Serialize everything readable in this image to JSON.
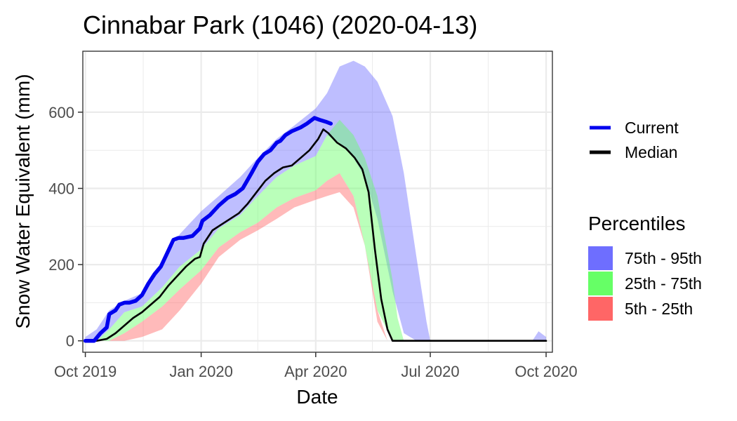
{
  "chart_data": {
    "type": "area",
    "title": "Cinnabar Park (1046) (2020-04-13)",
    "xlabel": "Date",
    "ylabel": "Snow Water Equivalent (mm)",
    "xlim": [
      "2019-09-29",
      "2020-10-06"
    ],
    "ylim": [
      -30,
      760
    ],
    "x_ticks": [
      {
        "date": "2019-10-01",
        "label": "Oct 2019"
      },
      {
        "date": "2020-01-01",
        "label": "Jan 2020"
      },
      {
        "date": "2020-04-01",
        "label": "Apr 2020"
      },
      {
        "date": "2020-07-01",
        "label": "Jul 2020"
      },
      {
        "date": "2020-10-01",
        "label": "Oct 2020"
      }
    ],
    "y_ticks": [
      {
        "value": 0,
        "label": "0"
      },
      {
        "value": 200,
        "label": "200"
      },
      {
        "value": 400,
        "label": "400"
      },
      {
        "value": 600,
        "label": "600"
      }
    ],
    "grid": true,
    "legend_placement": "right",
    "series": [
      {
        "name": "Current",
        "color": "#0000ee",
        "x": [
          "2019-10-01",
          "2019-10-08",
          "2019-10-13",
          "2019-10-18",
          "2019-10-20",
          "2019-10-25",
          "2019-10-28",
          "2019-11-01",
          "2019-11-05",
          "2019-11-10",
          "2019-11-15",
          "2019-11-20",
          "2019-11-25",
          "2019-11-30",
          "2019-12-05",
          "2019-12-10",
          "2019-12-14",
          "2019-12-18",
          "2019-12-25",
          "2019-12-31",
          "2020-01-02",
          "2020-01-08",
          "2020-01-15",
          "2020-01-22",
          "2020-01-28",
          "2020-02-03",
          "2020-02-10",
          "2020-02-15",
          "2020-02-20",
          "2020-02-25",
          "2020-03-01",
          "2020-03-04",
          "2020-03-08",
          "2020-03-13",
          "2020-03-20",
          "2020-03-25",
          "2020-03-31",
          "2020-04-04",
          "2020-04-09",
          "2020-04-13"
        ],
        "y": [
          0,
          0,
          20,
          35,
          70,
          80,
          95,
          100,
          100,
          105,
          120,
          150,
          175,
          195,
          230,
          265,
          270,
          270,
          275,
          295,
          315,
          330,
          355,
          375,
          385,
          400,
          440,
          470,
          490,
          500,
          520,
          525,
          540,
          550,
          560,
          570,
          585,
          580,
          575,
          570
        ]
      },
      {
        "name": "Median",
        "color": "#000000",
        "x": [
          "2019-10-01",
          "2019-10-10",
          "2019-10-18",
          "2019-10-25",
          "2019-11-01",
          "2019-11-08",
          "2019-11-15",
          "2019-11-22",
          "2019-11-29",
          "2019-12-06",
          "2019-12-13",
          "2019-12-20",
          "2019-12-27",
          "2019-12-31",
          "2020-01-03",
          "2020-01-10",
          "2020-01-17",
          "2020-01-24",
          "2020-01-31",
          "2020-02-07",
          "2020-02-14",
          "2020-02-21",
          "2020-02-28",
          "2020-03-06",
          "2020-03-13",
          "2020-03-20",
          "2020-03-27",
          "2020-04-03",
          "2020-04-07",
          "2020-04-11",
          "2020-04-18",
          "2020-04-25",
          "2020-05-02",
          "2020-05-08",
          "2020-05-13",
          "2020-05-18",
          "2020-05-23",
          "2020-05-28",
          "2020-06-01",
          "2020-06-06",
          "2020-06-15",
          "2020-07-15",
          "2020-08-15",
          "2020-09-15",
          "2020-10-01"
        ],
        "y": [
          0,
          0,
          5,
          20,
          40,
          60,
          75,
          95,
          115,
          145,
          170,
          195,
          215,
          220,
          255,
          290,
          305,
          320,
          335,
          360,
          390,
          420,
          440,
          455,
          460,
          480,
          500,
          530,
          555,
          545,
          520,
          505,
          480,
          450,
          390,
          240,
          110,
          30,
          0,
          0,
          0,
          0,
          0,
          0,
          0
        ]
      }
    ],
    "bands": [
      {
        "name": "75th - 95th",
        "color": "#6e6eff",
        "fill_opacity": 0.45,
        "x": [
          "2019-10-01",
          "2019-10-10",
          "2019-10-20",
          "2019-11-01",
          "2019-11-15",
          "2019-12-01",
          "2019-12-15",
          "2020-01-01",
          "2020-01-15",
          "2020-02-01",
          "2020-02-15",
          "2020-03-01",
          "2020-03-15",
          "2020-04-01",
          "2020-04-10",
          "2020-04-20",
          "2020-05-01",
          "2020-05-10",
          "2020-05-20",
          "2020-06-01",
          "2020-06-10",
          "2020-06-20",
          "2020-06-28",
          "2020-07-01",
          "2020-09-20",
          "2020-09-25",
          "2020-10-01"
        ],
        "upper": [
          10,
          30,
          80,
          105,
          125,
          200,
          280,
          340,
          380,
          430,
          480,
          530,
          565,
          610,
          650,
          720,
          735,
          720,
          680,
          590,
          440,
          220,
          50,
          0,
          0,
          25,
          10
        ],
        "lower": [
          0,
          0,
          30,
          75,
          90,
          140,
          195,
          240,
          295,
          330,
          380,
          430,
          460,
          485,
          540,
          520,
          480,
          430,
          320,
          130,
          20,
          0,
          0,
          0,
          0,
          0,
          0
        ]
      },
      {
        "name": "25th - 75th",
        "color": "#66ff66",
        "fill_opacity": 0.45,
        "x": [
          "2019-10-01",
          "2019-10-10",
          "2019-10-20",
          "2019-11-01",
          "2019-11-15",
          "2019-12-01",
          "2019-12-15",
          "2020-01-01",
          "2020-01-15",
          "2020-02-01",
          "2020-02-15",
          "2020-03-01",
          "2020-03-15",
          "2020-04-01",
          "2020-04-10",
          "2020-04-20",
          "2020-05-01",
          "2020-05-10",
          "2020-05-20",
          "2020-06-01",
          "2020-06-05",
          "2020-06-10"
        ],
        "upper": [
          0,
          0,
          30,
          75,
          90,
          140,
          195,
          240,
          295,
          330,
          380,
          430,
          460,
          485,
          540,
          580,
          540,
          480,
          380,
          160,
          60,
          0
        ],
        "lower": [
          0,
          0,
          0,
          20,
          50,
          90,
          135,
          185,
          245,
          285,
          310,
          350,
          375,
          395,
          420,
          440,
          380,
          250,
          80,
          0,
          0,
          0
        ]
      },
      {
        "name": "5th - 25th",
        "color": "#ff6666",
        "fill_opacity": 0.45,
        "x": [
          "2019-10-01",
          "2019-10-10",
          "2019-10-20",
          "2019-11-01",
          "2019-11-15",
          "2019-12-01",
          "2019-12-15",
          "2020-01-01",
          "2020-01-15",
          "2020-02-01",
          "2020-02-15",
          "2020-03-01",
          "2020-03-15",
          "2020-04-01",
          "2020-04-10",
          "2020-04-20",
          "2020-05-01",
          "2020-05-10",
          "2020-05-20",
          "2020-05-28",
          "2020-06-01"
        ],
        "upper": [
          0,
          0,
          0,
          20,
          50,
          90,
          135,
          185,
          245,
          285,
          310,
          350,
          375,
          395,
          420,
          440,
          380,
          250,
          80,
          0,
          0
        ],
        "lower": [
          0,
          0,
          0,
          0,
          10,
          30,
          80,
          150,
          220,
          265,
          290,
          320,
          350,
          370,
          380,
          390,
          350,
          250,
          50,
          0,
          0
        ]
      }
    ],
    "legend": {
      "lines": [
        {
          "label": "Current",
          "color": "#0000ee"
        },
        {
          "label": "Median",
          "color": "#000000"
        }
      ],
      "percentiles_title": "Percentiles",
      "percentiles": [
        {
          "label": "75th - 95th",
          "color": "#6e6eff"
        },
        {
          "label": "25th - 75th",
          "color": "#66ff66"
        },
        {
          "label": "5th - 25th",
          "color": "#ff6666"
        }
      ]
    }
  }
}
